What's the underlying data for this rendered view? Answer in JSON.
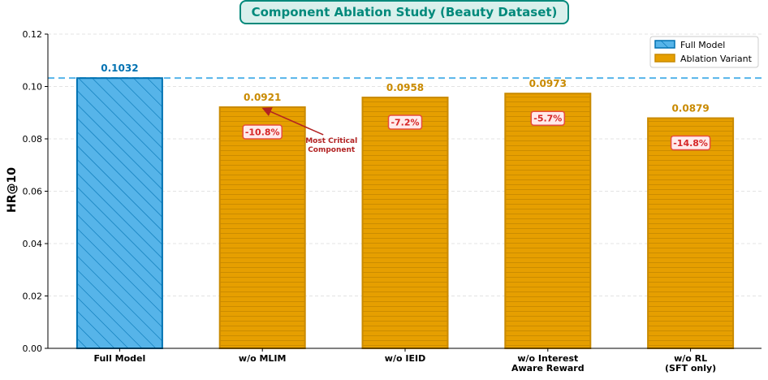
{
  "chart_data": {
    "type": "bar",
    "title": "Component Ablation Study (Beauty Dataset)",
    "xlabel": "",
    "ylabel": "HR@10",
    "ylim": [
      0,
      0.12
    ],
    "yticks": [
      "0.00",
      "0.02",
      "0.04",
      "0.06",
      "0.08",
      "0.10",
      "0.12"
    ],
    "ytick_values": [
      0,
      0.02,
      0.04,
      0.06,
      0.08,
      0.1,
      0.12
    ],
    "grid": true,
    "legend_position": "top-right",
    "reference_line": 0.1032,
    "categories": [
      [
        "Full Model"
      ],
      [
        "w/o MLIM"
      ],
      [
        "w/o IEID"
      ],
      [
        "w/o Interest",
        "Aware Reward"
      ],
      [
        "w/o RL",
        "(SFT only)"
      ]
    ],
    "values": [
      0.1032,
      0.0921,
      0.0958,
      0.0973,
      0.0879
    ],
    "value_labels": [
      "0.1032",
      "0.0921",
      "0.0958",
      "0.0973",
      "0.0879"
    ],
    "changes": [
      "",
      "-10.8%",
      "-7.2%",
      "-5.7%",
      "-14.8%"
    ],
    "series": [
      {
        "name": "Full Model",
        "indices": [
          0
        ]
      },
      {
        "name": "Ablation Variant",
        "indices": [
          1,
          2,
          3,
          4
        ]
      }
    ],
    "annotation": {
      "lines": [
        "Most Critical",
        "Component"
      ],
      "target_index": 1
    },
    "colors": {
      "full_fill": "#56b4e9",
      "full_edge": "#0072b2",
      "ablation_fill": "#e69f00",
      "ablation_edge": "#c98a00",
      "ablation_stripe": "#c98a00",
      "full_label": "#0072b2",
      "ablation_label": "#c98a00",
      "pct_text": "#d62728",
      "pct_box_edge": "#e74c3c",
      "pct_box_fill": "#ffeaea",
      "ref_line": "#56b4e9",
      "annotation": "#b22222",
      "title_fill": "#d9f0ec",
      "title_edge": "#00897b",
      "title_text": "#00897b",
      "grid": "#e3e3e3"
    }
  }
}
